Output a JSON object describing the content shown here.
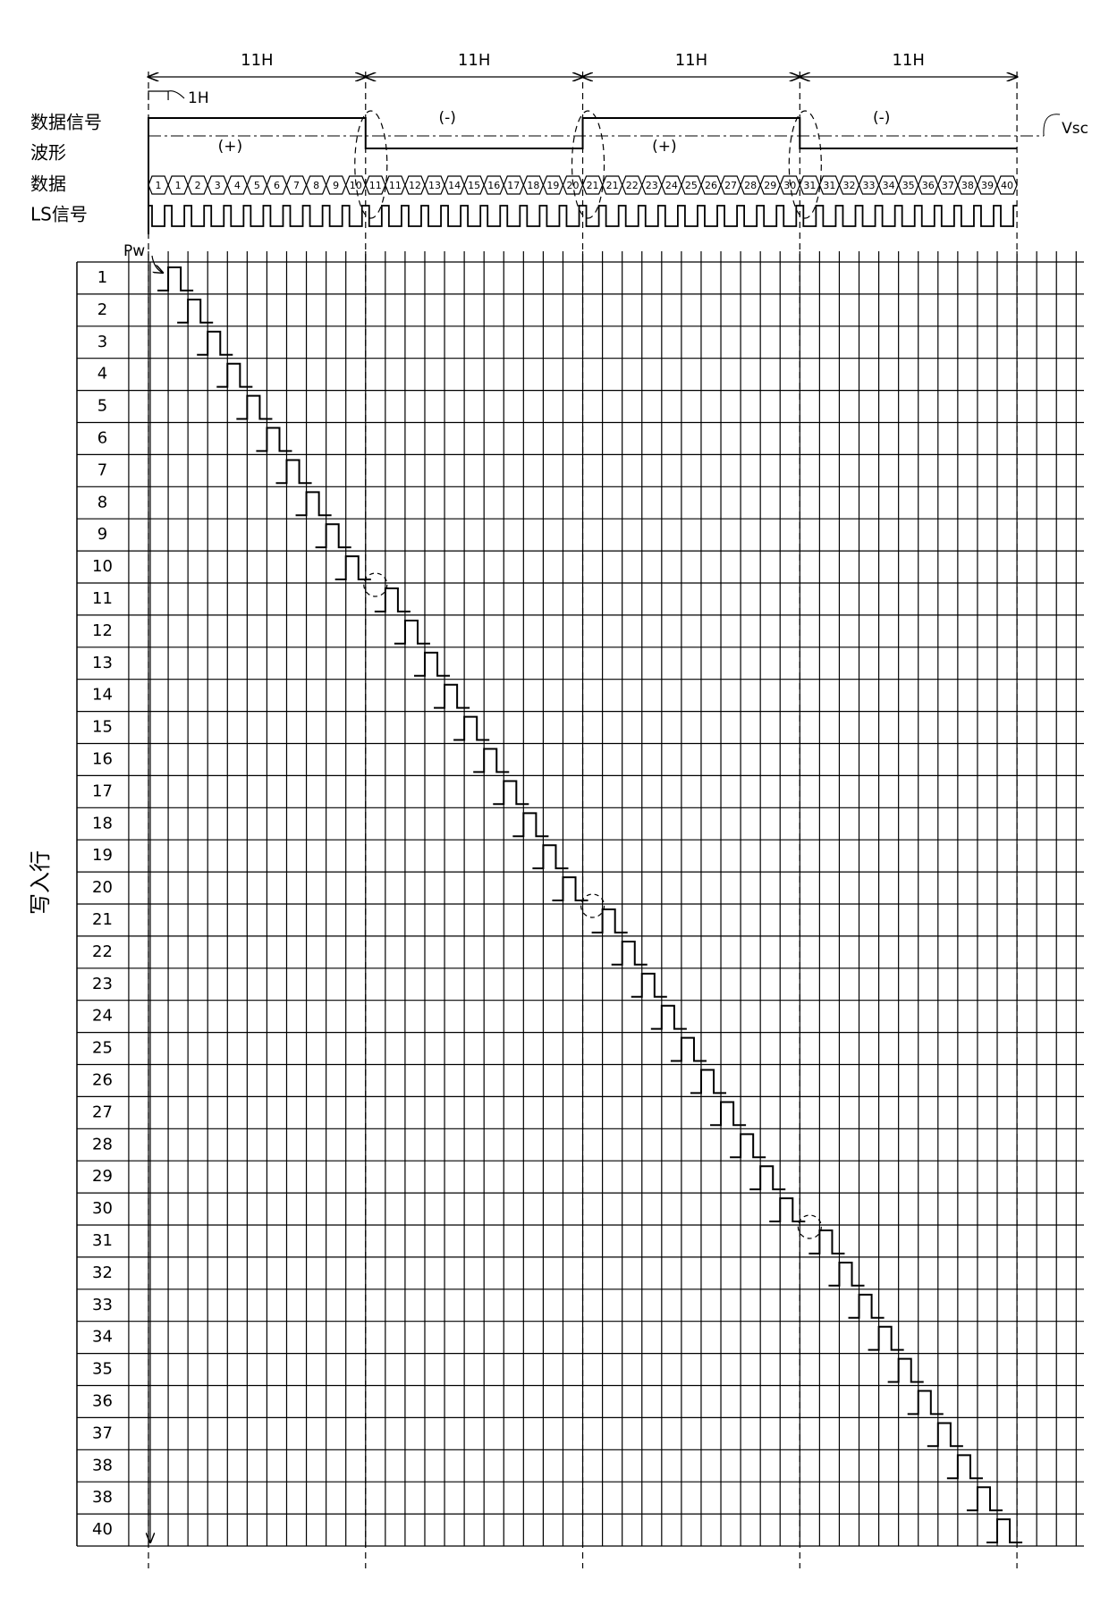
{
  "header": {
    "periods": [
      "11H",
      "11H",
      "11H",
      "11H"
    ],
    "unit_label": "1H",
    "vsc_label": "Vsc",
    "pw_label": "Pw"
  },
  "signal_labels": [
    "数据信号",
    "波形",
    "数据",
    "LS信号"
  ],
  "polarity": [
    "(+)",
    "(-)",
    "(+)",
    "(-)"
  ],
  "data_cells": [
    "1",
    "1",
    "2",
    "3",
    "4",
    "5",
    "6",
    "7",
    "8",
    "9",
    "10",
    "11",
    "11",
    "12",
    "13",
    "14",
    "15",
    "16",
    "17",
    "18",
    "19",
    "20",
    "21",
    "21",
    "22",
    "23",
    "24",
    "25",
    "26",
    "27",
    "28",
    "29",
    "30",
    "31",
    "31",
    "32",
    "33",
    "34",
    "35",
    "36",
    "37",
    "38",
    "39",
    "40"
  ],
  "rows": {
    "axis_label": "写入行",
    "labels": [
      "1",
      "2",
      "3",
      "4",
      "5",
      "6",
      "7",
      "8",
      "9",
      "10",
      "11",
      "12",
      "13",
      "14",
      "15",
      "16",
      "17",
      "18",
      "19",
      "20",
      "21",
      "22",
      "23",
      "24",
      "25",
      "26",
      "27",
      "28",
      "29",
      "30",
      "31",
      "32",
      "33",
      "34",
      "35",
      "36",
      "37",
      "38",
      "38",
      "40"
    ]
  }
}
